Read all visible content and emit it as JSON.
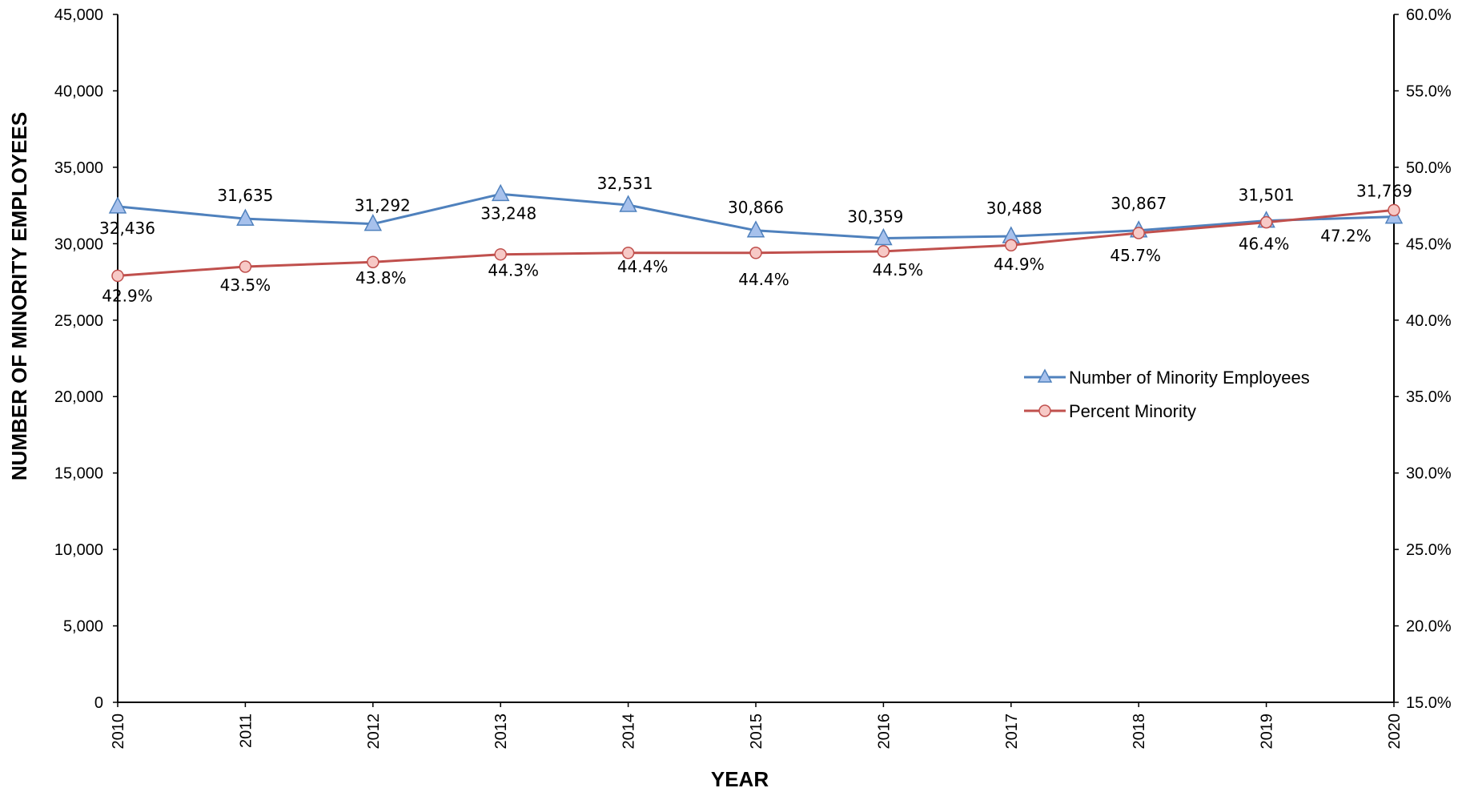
{
  "chart_data": {
    "type": "line",
    "x": [
      "2010",
      "2011",
      "2012",
      "2013",
      "2014",
      "2015",
      "2016",
      "2017",
      "2018",
      "2019",
      "2020"
    ],
    "xlabel": "YEAR",
    "ylabel": "NUMBER OF MINORITY EMPLOYEES",
    "ylabel_right": "",
    "ylim": [
      0,
      45000
    ],
    "ylim_right": [
      15.0,
      60.0
    ],
    "y_ticks": [
      "0",
      "5,000",
      "10,000",
      "15,000",
      "20,000",
      "25,000",
      "30,000",
      "35,000",
      "40,000",
      "45,000"
    ],
    "y_ticks_right": [
      "15.0%",
      "20.0%",
      "25.0%",
      "30.0%",
      "35.0%",
      "40.0%",
      "45.0%",
      "50.0%",
      "55.0%",
      "60.0%"
    ],
    "grid": false,
    "legend_position": "center-right",
    "series": [
      {
        "name": "Number of Minority Employees",
        "axis": "left",
        "marker": "triangle",
        "color": "#4f81bd",
        "marker_fill": "#a7c1ec",
        "values": [
          32436,
          31635,
          31292,
          33248,
          32531,
          30866,
          30359,
          30488,
          30867,
          31501,
          31769
        ],
        "labels": [
          "32,436",
          "31,635",
          "31,292",
          "33,248",
          "32,531",
          "30,866",
          "30,359",
          "30,488",
          "30,867",
          "31,501",
          "31,769"
        ]
      },
      {
        "name": "Percent Minority",
        "axis": "right",
        "marker": "circle",
        "color": "#c0504d",
        "marker_fill": "#f7c9c6",
        "values": [
          42.9,
          43.5,
          43.8,
          44.3,
          44.4,
          44.4,
          44.5,
          44.9,
          45.7,
          46.4,
          47.2
        ],
        "labels": [
          "42.9%",
          "43.5%",
          "43.8%",
          "44.3%",
          "44.4%",
          "44.4%",
          "44.5%",
          "44.9%",
          "45.7%",
          "46.4%",
          "47.2%"
        ]
      }
    ]
  }
}
